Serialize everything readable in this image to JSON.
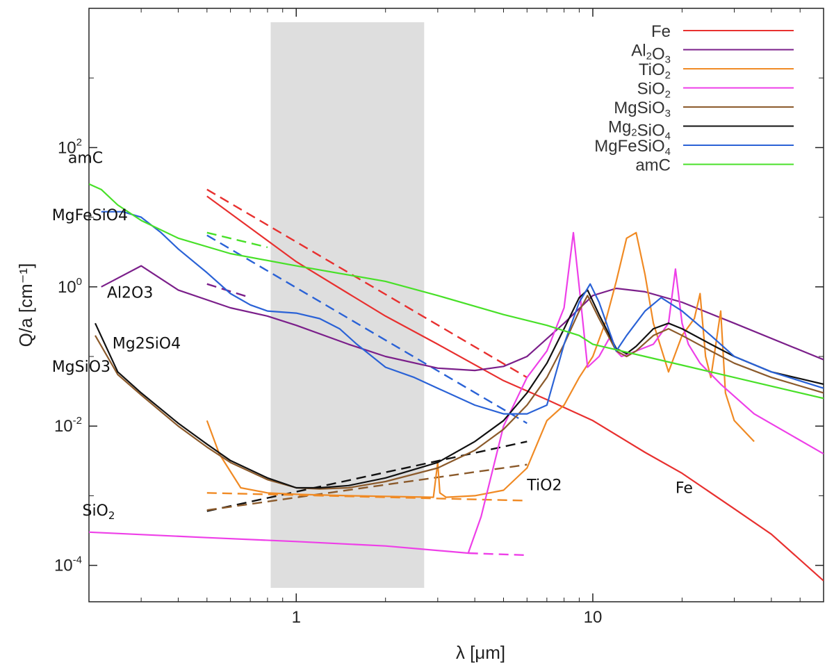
{
  "chart_data": {
    "type": "line",
    "title": "",
    "xlabel": "λ [μm]",
    "ylabel": "Q/a [cm⁻¹]",
    "x_scale": "log",
    "y_scale": "log",
    "xlim": [
      0.2,
      60
    ],
    "ylim": [
      3e-05,
      10000
    ],
    "x_ticks": [
      {
        "value": 1,
        "label": "1"
      },
      {
        "value": 10,
        "label": "10"
      }
    ],
    "y_ticks": [
      {
        "value": 100,
        "base": "10",
        "exp": "2"
      },
      {
        "value": 1,
        "base": "10",
        "exp": "0"
      },
      {
        "value": 0.01,
        "base": "10",
        "exp": "-2"
      },
      {
        "value": 0.0001,
        "base": "10",
        "exp": "-4"
      }
    ],
    "shaded_region": {
      "x_start": 0.82,
      "x_end": 2.7,
      "color": "#dedede"
    },
    "grid": false,
    "legend_position": "top-right",
    "series": [
      {
        "name": "Fe",
        "label_parts": [
          [
            "Fe",
            ""
          ]
        ],
        "color": "#e8302f",
        "x": [
          0.5,
          0.7,
          1.0,
          1.5,
          2.0,
          3.0,
          5.0,
          7.0,
          10.0,
          15.0,
          20.0,
          30.0,
          40.0,
          60.0
        ],
        "y": [
          20,
          7,
          2.3,
          0.8,
          0.38,
          0.15,
          0.045,
          0.024,
          0.012,
          0.0042,
          0.0021,
          0.00065,
          0.00028,
          6e-05
        ]
      },
      {
        "name": "Al2O3",
        "label_parts": [
          [
            "Al",
            ""
          ],
          [
            "2",
            "sub"
          ],
          [
            "O",
            ""
          ],
          [
            "3",
            "sub"
          ]
        ],
        "color": "#7b1f8a",
        "x": [
          0.22,
          0.3,
          0.4,
          0.6,
          0.8,
          1.0,
          1.5,
          2.0,
          3.0,
          4.0,
          5.0,
          6.0,
          8.0,
          10.0,
          12.0,
          15.0,
          20.0,
          30.0,
          60.0
        ],
        "y": [
          1.0,
          2.0,
          0.9,
          0.5,
          0.38,
          0.28,
          0.15,
          0.1,
          0.068,
          0.063,
          0.072,
          0.1,
          0.3,
          0.75,
          0.95,
          0.85,
          0.6,
          0.3,
          0.09
        ]
      },
      {
        "name": "TiO2",
        "label_parts": [
          [
            "TiO",
            ""
          ],
          [
            "2",
            "sub"
          ]
        ],
        "color": "#f08a24",
        "x": [
          0.5,
          0.55,
          0.65,
          0.8,
          1.0,
          1.5,
          2.0,
          2.9,
          3.0,
          3.05,
          3.2,
          4.0,
          5.0,
          6.0,
          7.0,
          8.0,
          9.0,
          10.0,
          11.0,
          12.0,
          13.0,
          14.0,
          15.0,
          16.0,
          18.0,
          20.0,
          22.0,
          23.0,
          24.0,
          25.0,
          26.0,
          27.0,
          28.0,
          30.0,
          35.0
        ],
        "y": [
          0.012,
          0.004,
          0.0013,
          0.0011,
          0.00105,
          0.001,
          0.00098,
          0.00095,
          0.003,
          0.0011,
          0.00095,
          0.001,
          0.0012,
          0.0025,
          0.012,
          0.02,
          0.05,
          0.1,
          0.3,
          1.2,
          5.0,
          6.0,
          1.5,
          0.3,
          0.06,
          0.2,
          0.35,
          0.8,
          0.1,
          0.05,
          0.15,
          0.45,
          0.03,
          0.012,
          0.006
        ]
      },
      {
        "name": "SiO2",
        "label_parts": [
          [
            "SiO",
            ""
          ],
          [
            "2",
            "sub"
          ]
        ],
        "color": "#ee3fe8",
        "x": [
          0.2,
          0.5,
          1.0,
          2.0,
          3.8,
          4.2,
          5.0,
          6.0,
          7.0,
          8.0,
          8.6,
          9.0,
          9.6,
          10.5,
          11.5,
          12.0,
          12.5,
          14.0,
          16.0,
          18.0,
          19.0,
          20.0,
          21.0,
          23.0,
          27.0,
          35.0,
          60.0
        ],
        "y": [
          0.0003,
          0.00025,
          0.00022,
          0.00019,
          0.00015,
          0.0005,
          0.01,
          0.05,
          0.12,
          0.5,
          6.0,
          1.0,
          0.07,
          0.1,
          0.2,
          0.12,
          0.1,
          0.12,
          0.15,
          0.3,
          1.8,
          0.3,
          0.15,
          0.08,
          0.04,
          0.015,
          0.004
        ]
      },
      {
        "name": "MgSiO3",
        "label_parts": [
          [
            "MgSiO",
            ""
          ],
          [
            "3",
            "sub"
          ]
        ],
        "color": "#8b5a2b",
        "x": [
          0.21,
          0.25,
          0.3,
          0.4,
          0.5,
          0.6,
          0.8,
          1.0,
          1.2,
          1.5,
          2.0,
          3.0,
          4.0,
          5.0,
          6.0,
          7.0,
          8.0,
          9.0,
          9.6,
          10.5,
          12.0,
          13.0,
          14.0,
          16.0,
          18.0,
          20.0,
          25.0,
          30.0,
          40.0,
          60.0
        ],
        "y": [
          0.2,
          0.055,
          0.028,
          0.01,
          0.005,
          0.003,
          0.0017,
          0.0013,
          0.00125,
          0.0013,
          0.0016,
          0.0025,
          0.0045,
          0.009,
          0.02,
          0.05,
          0.15,
          0.45,
          0.75,
          0.35,
          0.12,
          0.1,
          0.12,
          0.2,
          0.25,
          0.2,
          0.12,
          0.08,
          0.05,
          0.03
        ]
      },
      {
        "name": "Mg2SiO4",
        "label_parts": [
          [
            "Mg",
            ""
          ],
          [
            "2",
            "sub"
          ],
          [
            "SiO",
            ""
          ],
          [
            "4",
            "sub"
          ]
        ],
        "color": "#111111",
        "x": [
          0.21,
          0.25,
          0.3,
          0.4,
          0.5,
          0.6,
          0.8,
          1.0,
          1.2,
          1.5,
          2.0,
          3.0,
          4.0,
          5.0,
          6.0,
          7.0,
          8.0,
          9.0,
          9.6,
          10.5,
          12.0,
          13.0,
          14.0,
          16.0,
          18.0,
          20.0,
          25.0,
          30.0,
          40.0,
          60.0
        ],
        "y": [
          0.3,
          0.06,
          0.03,
          0.011,
          0.0055,
          0.0032,
          0.0018,
          0.0013,
          0.0013,
          0.0014,
          0.0018,
          0.003,
          0.006,
          0.012,
          0.03,
          0.08,
          0.25,
          0.7,
          0.9,
          0.4,
          0.13,
          0.11,
          0.14,
          0.25,
          0.3,
          0.25,
          0.15,
          0.1,
          0.06,
          0.04
        ]
      },
      {
        "name": "MgFeSiO4",
        "label_parts": [
          [
            "MgFeSiO",
            ""
          ],
          [
            "4",
            "sub"
          ]
        ],
        "color": "#2a62d6",
        "x": [
          0.22,
          0.26,
          0.3,
          0.35,
          0.4,
          0.5,
          0.6,
          0.7,
          0.8,
          1.0,
          1.2,
          1.4,
          1.6,
          2.0,
          2.5,
          3.0,
          4.0,
          5.0,
          6.0,
          7.0,
          8.0,
          9.0,
          9.8,
          10.5,
          12.0,
          13.0,
          15.0,
          17.0,
          20.0,
          25.0,
          30.0,
          40.0,
          60.0
        ],
        "y": [
          12,
          12,
          10,
          6,
          3.5,
          1.6,
          0.8,
          0.55,
          0.45,
          0.42,
          0.35,
          0.25,
          0.15,
          0.07,
          0.05,
          0.035,
          0.02,
          0.015,
          0.015,
          0.02,
          0.15,
          0.6,
          1.1,
          0.6,
          0.12,
          0.2,
          0.45,
          0.7,
          0.45,
          0.2,
          0.1,
          0.06,
          0.035
        ]
      },
      {
        "name": "amC",
        "label_parts": [
          [
            "amC",
            ""
          ]
        ],
        "color": "#48e028",
        "x": [
          0.2,
          0.22,
          0.25,
          0.3,
          0.4,
          0.6,
          1.0,
          2.0,
          3.0,
          5.0,
          7.0,
          9.0,
          10.0,
          15.0,
          20.0,
          30.0,
          60.0
        ],
        "y": [
          30,
          25,
          15,
          9,
          5.0,
          3.0,
          2.0,
          1.2,
          0.75,
          0.4,
          0.28,
          0.2,
          0.15,
          0.1,
          0.075,
          0.05,
          0.025
        ]
      }
    ],
    "extrapolations": [
      {
        "name": "Fe",
        "color": "#e8302f",
        "x": [
          0.5,
          6.0
        ],
        "y": [
          25,
          0.05
        ]
      },
      {
        "name": "amC",
        "color": "#48e028",
        "x": [
          0.5,
          0.8
        ],
        "y": [
          6.0,
          3.7
        ]
      },
      {
        "name": "Al2O3",
        "color": "#7b1f8a",
        "x": [
          0.5,
          0.7
        ],
        "y": [
          1.1,
          0.7
        ]
      },
      {
        "name": "MgFeSiO4",
        "color": "#2a62d6",
        "x": [
          0.5,
          6.0
        ],
        "y": [
          5.5,
          0.011
        ]
      },
      {
        "name": "Mg2SiO4",
        "color": "#111111",
        "x": [
          0.5,
          6.0
        ],
        "y": [
          0.0006,
          0.006
        ]
      },
      {
        "name": "MgSiO3",
        "color": "#8b5a2b",
        "x": [
          0.5,
          6.0
        ],
        "y": [
          0.00062,
          0.0028
        ]
      },
      {
        "name": "TiO2",
        "color": "#f08a24",
        "x": [
          0.5,
          6.0
        ],
        "y": [
          0.0011,
          0.00085
        ]
      },
      {
        "name": "SiO2",
        "color": "#ee3fe8",
        "x": [
          3.8,
          6.0
        ],
        "y": [
          0.00015,
          0.00014
        ]
      }
    ],
    "annotations": [
      {
        "name": "amC",
        "parts": [
          [
            "amC",
            ""
          ]
        ],
        "x": 0.17,
        "y": 60
      },
      {
        "name": "MgFeSiO4",
        "parts": [
          [
            "MgFeSiO4",
            ""
          ]
        ],
        "x": 0.15,
        "y": 9
      },
      {
        "name": "Al2O3",
        "parts": [
          [
            "Al2O3",
            ""
          ]
        ],
        "x": 0.23,
        "y": 0.7
      },
      {
        "name": "Mg2SiO4",
        "parts": [
          [
            "Mg2SiO4",
            ""
          ]
        ],
        "x": 0.24,
        "y": 0.13
      },
      {
        "name": "MgSiO3",
        "parts": [
          [
            "MgSiO3",
            ""
          ]
        ],
        "x": 0.15,
        "y": 0.06
      },
      {
        "name": "SiO2",
        "parts": [
          [
            "SiO",
            ""
          ],
          [
            "2",
            "sub"
          ]
        ],
        "x": 0.19,
        "y": 0.00052
      },
      {
        "name": "TiO2",
        "parts": [
          [
            "TiO2",
            ""
          ]
        ],
        "x": 6.0,
        "y": 0.0012
      },
      {
        "name": "Fe",
        "parts": [
          [
            "Fe",
            ""
          ]
        ],
        "x": 19.0,
        "y": 0.0011
      }
    ]
  }
}
